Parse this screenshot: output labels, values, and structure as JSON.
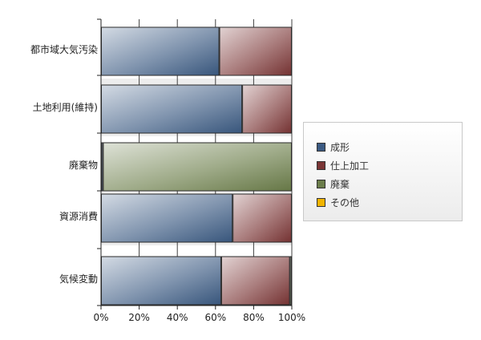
{
  "chart_data": {
    "type": "bar",
    "orientation": "horizontal",
    "stacked": "percent",
    "categories": [
      "都市域大気汚染",
      "土地利用(維持)",
      "廃棄物",
      "資源消費",
      "気候変動"
    ],
    "series": [
      {
        "name": "成形",
        "color": "#3b5a82",
        "values": [
          62,
          74,
          1,
          69,
          63
        ]
      },
      {
        "name": "仕上加工",
        "color": "#7a3535",
        "values": [
          38,
          26,
          0,
          31,
          36
        ]
      },
      {
        "name": "廃棄",
        "color": "#6b7d4a",
        "values": [
          0,
          0,
          99,
          0,
          1
        ]
      },
      {
        "name": "その他",
        "color": "#f2b400",
        "values": [
          0,
          0,
          0,
          0,
          0
        ]
      }
    ],
    "xlim": [
      0,
      100
    ],
    "xticks": [
      "0%",
      "20%",
      "40%",
      "60%",
      "80%",
      "100%"
    ],
    "grid": true,
    "legend_position": "right"
  }
}
